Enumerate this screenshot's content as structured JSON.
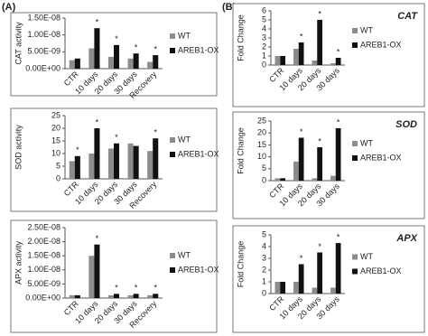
{
  "panel_labels": [
    "(A)",
    "(B)"
  ],
  "chart_data": [
    {
      "type": "bar",
      "ylabel": "CAT activity",
      "categories": [
        "CTR",
        "10 days",
        "20 days",
        "30 days",
        "Recovery"
      ],
      "series": [
        {
          "name": "WT",
          "color": "#8c8c8c",
          "values": [
            2.5e-09,
            6e-09,
            3.5e-09,
            3e-09,
            2e-09
          ]
        },
        {
          "name": "AREB1-OX",
          "color": "#111111",
          "values": [
            3e-09,
            1.2e-08,
            7e-09,
            4.5e-09,
            4e-09
          ],
          "annotations": [
            null,
            "*",
            "*",
            "*",
            "*"
          ]
        }
      ],
      "ylim": [
        0,
        1.5e-08
      ],
      "yticks": [
        {
          "value": 0,
          "label": "0.00E+00"
        },
        {
          "value": 5e-09,
          "label": "5.00E-09"
        },
        {
          "value": 1e-08,
          "label": "1.00E-08"
        },
        {
          "value": 1.5e-08,
          "label": "1.50E-08"
        }
      ],
      "legend": "right"
    },
    {
      "type": "bar",
      "ylabel": "SOD activity",
      "categories": [
        "CTR",
        "10 days",
        "20 days",
        "30 days",
        "Recovery"
      ],
      "series": [
        {
          "name": "WT",
          "color": "#8c8c8c",
          "values": [
            7,
            10,
            12,
            14,
            11
          ]
        },
        {
          "name": "AREB1-OX",
          "color": "#111111",
          "values": [
            9,
            20,
            14,
            13,
            16
          ],
          "annotations": [
            "*",
            "*",
            "*",
            null,
            "*"
          ]
        }
      ],
      "ylim": [
        0,
        25
      ],
      "yticks": [
        0,
        5,
        10,
        15,
        20,
        25
      ],
      "legend": "right"
    },
    {
      "type": "bar",
      "ylabel": "APX activity",
      "categories": [
        "CTR",
        "10 days",
        "20 days",
        "30 days",
        "Recovery"
      ],
      "series": [
        {
          "name": "WT",
          "color": "#8c8c8c",
          "values": [
            1e-09,
            1.5e-08,
            1e-09,
            1e-09,
            1e-09
          ]
        },
        {
          "name": "AREB1-OX",
          "color": "#111111",
          "values": [
            1e-09,
            1.9e-08,
            1.5e-09,
            1.5e-09,
            1.5e-09
          ],
          "annotations": [
            null,
            "*",
            "*",
            "*",
            "*"
          ]
        }
      ],
      "ylim": [
        0,
        2.5e-08
      ],
      "yticks": [
        {
          "value": 0,
          "label": "0.00E+00"
        },
        {
          "value": 5e-09,
          "label": "5.00E-09"
        },
        {
          "value": 1e-08,
          "label": "1.00E-08"
        },
        {
          "value": 1.5e-08,
          "label": "1.50E-08"
        },
        {
          "value": 2e-08,
          "label": "2.00E-08"
        },
        {
          "value": 2.5e-08,
          "label": "2.50E-08"
        }
      ],
      "legend": "right"
    },
    {
      "type": "bar",
      "title": "CAT",
      "ylabel": "Fold Change",
      "categories": [
        "CTR",
        "10 days",
        "20 days",
        "30 days"
      ],
      "series": [
        {
          "name": "WT",
          "color": "#8c8c8c",
          "values": [
            1,
            1.8,
            0.5,
            0.2
          ]
        },
        {
          "name": "AREB1-OX",
          "color": "#111111",
          "values": [
            1,
            2.5,
            5,
            0.8
          ],
          "annotations": [
            null,
            "*",
            "*",
            "*"
          ]
        }
      ],
      "ylim": [
        0,
        6
      ],
      "yticks": [
        0,
        1,
        2,
        3,
        4,
        5,
        6
      ],
      "legend": "right"
    },
    {
      "type": "bar",
      "title": "SOD",
      "ylabel": "Fold Change",
      "categories": [
        "CTR",
        "10 days",
        "20 days",
        "30 days"
      ],
      "series": [
        {
          "name": "WT",
          "color": "#8c8c8c",
          "values": [
            1,
            8,
            1,
            2
          ]
        },
        {
          "name": "AREB1-OX",
          "color": "#111111",
          "values": [
            1,
            18,
            14,
            22
          ],
          "annotations": [
            null,
            "*",
            "*",
            "*"
          ]
        }
      ],
      "ylim": [
        0,
        25
      ],
      "yticks": [
        0,
        5,
        10,
        15,
        20,
        25
      ],
      "legend": "right"
    },
    {
      "type": "bar",
      "title": "APX",
      "ylabel": "Fold Change",
      "categories": [
        "CTR",
        "10 days",
        "20 days",
        "30 days"
      ],
      "series": [
        {
          "name": "WT",
          "color": "#8c8c8c",
          "values": [
            1,
            1,
            0.5,
            0.5
          ]
        },
        {
          "name": "AREB1-OX",
          "color": "#111111",
          "values": [
            1,
            2.5,
            3.5,
            4.3
          ],
          "annotations": [
            null,
            "*",
            "*",
            "*"
          ]
        }
      ],
      "ylim": [
        0,
        5
      ],
      "yticks": [
        0,
        1,
        2,
        3,
        4,
        5
      ],
      "legend": "right"
    }
  ]
}
